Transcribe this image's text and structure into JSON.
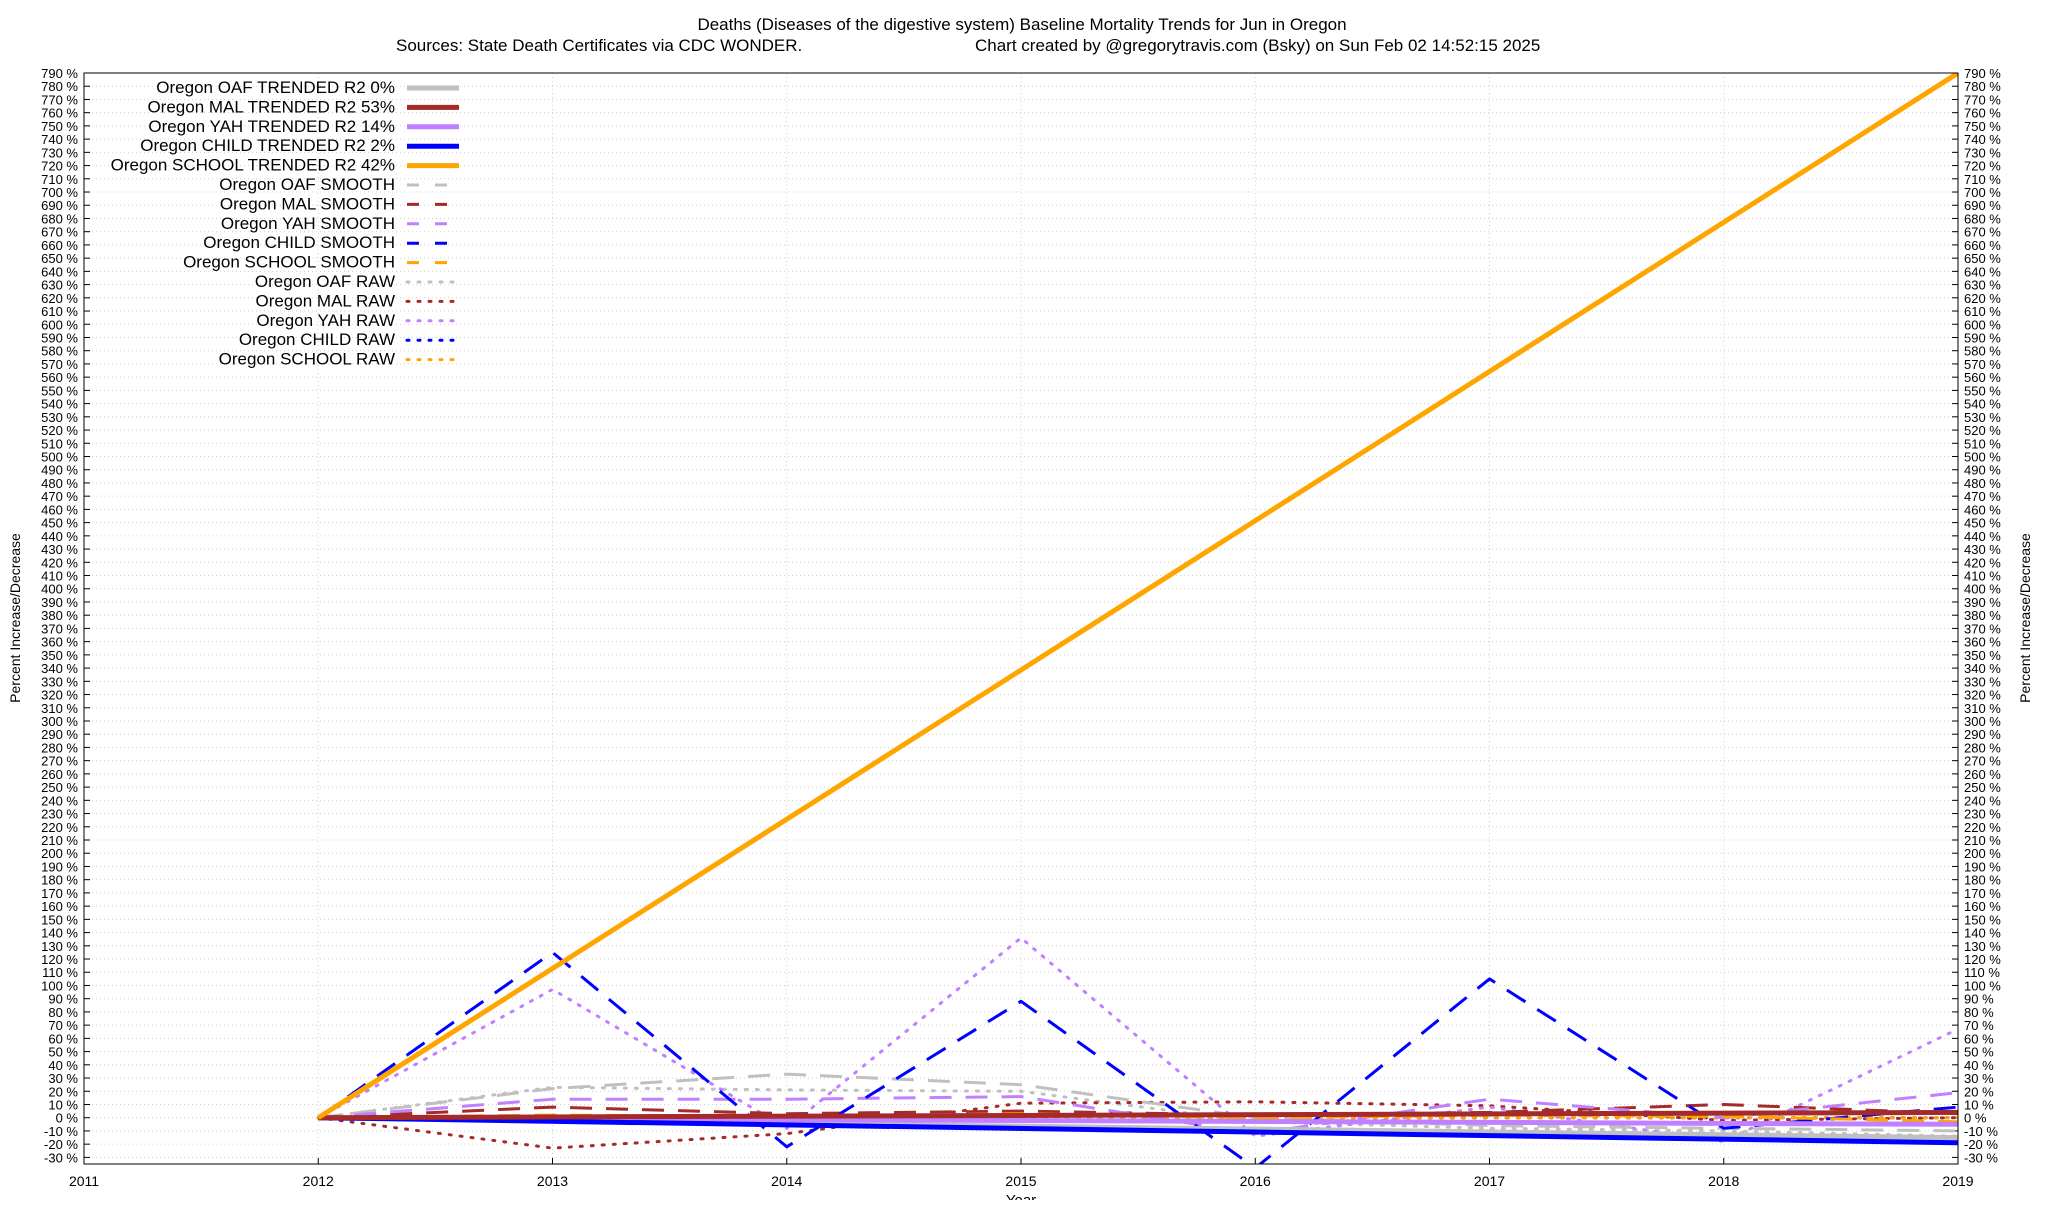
{
  "chart_data": {
    "type": "line",
    "title": "Deaths (Diseases of the digestive system)  Baseline Mortality Trends for Jun in Oregon",
    "subtitle_left": "Sources: State Death Certificates via CDC WONDER.",
    "subtitle_right": "Chart created by @gregorytravis.com (Bsky) on Sun Feb 02 14:52:15 2025",
    "xlabel": "Year",
    "ylabel": "Percent Increase/Decrease",
    "ylabel_right": "Percent Increase/Decrease",
    "xlim": [
      2011,
      2019
    ],
    "ylim": [
      -35,
      790
    ],
    "x_ticks": [
      "2011",
      "2012",
      "2013",
      "2014",
      "2015",
      "2016",
      "2017",
      "2018",
      "2019"
    ],
    "y_tick_step": 10,
    "y_tick_min": -30,
    "y_tick_max": 790,
    "y_tick_suffix": " %",
    "grid": true,
    "legend_position": "top-left",
    "series": [
      {
        "name": "Oregon OAF TRENDED R2  0%",
        "style": "solid",
        "color": "#c0c0c0",
        "width": 5,
        "x": [
          2012,
          2019
        ],
        "y": [
          0,
          -15
        ]
      },
      {
        "name": "Oregon MAL TRENDED R2  53%",
        "style": "solid",
        "color": "#a52a2a",
        "width": 5,
        "x": [
          2012,
          2019
        ],
        "y": [
          0,
          4
        ]
      },
      {
        "name": "Oregon YAH TRENDED R2  14%",
        "style": "solid",
        "color": "#c080ff",
        "width": 5,
        "x": [
          2012,
          2019
        ],
        "y": [
          0,
          -5
        ]
      },
      {
        "name": "Oregon CHILD TRENDED R2  2%",
        "style": "solid",
        "color": "#0000ff",
        "width": 5,
        "x": [
          2012,
          2019
        ],
        "y": [
          0,
          -19
        ]
      },
      {
        "name": "Oregon SCHOOL TRENDED R2  42%",
        "style": "solid",
        "color": "#ffa500",
        "width": 5,
        "x": [
          2012,
          2019
        ],
        "y": [
          0,
          790
        ]
      },
      {
        "name": "Oregon OAF SMOOTH",
        "style": "dash",
        "color": "#c0c0c0",
        "width": 3,
        "x": [
          2012,
          2013,
          2014,
          2015,
          2016,
          2017,
          2018,
          2019
        ],
        "y": [
          0,
          22,
          33,
          25,
          0,
          -6,
          -8,
          -10
        ]
      },
      {
        "name": "Oregon MAL SMOOTH",
        "style": "dash",
        "color": "#a52a2a",
        "width": 3,
        "x": [
          2012,
          2013,
          2014,
          2015,
          2016,
          2017,
          2018,
          2019
        ],
        "y": [
          0,
          8,
          3,
          5,
          2,
          4,
          10,
          3
        ]
      },
      {
        "name": "Oregon YAH SMOOTH",
        "style": "dash",
        "color": "#c080ff",
        "width": 3,
        "x": [
          2012,
          2013,
          2014,
          2015,
          2016,
          2017,
          2018,
          2019
        ],
        "y": [
          0,
          14,
          14,
          16,
          -12,
          14,
          0,
          19
        ]
      },
      {
        "name": "Oregon CHILD SMOOTH",
        "style": "dash",
        "color": "#0000ff",
        "width": 3,
        "x": [
          2012,
          2013,
          2014,
          2015,
          2016,
          2017,
          2018,
          2019
        ],
        "y": [
          0,
          125,
          -22,
          88,
          -38,
          105,
          -8,
          8
        ]
      },
      {
        "name": "Oregon SCHOOL SMOOTH",
        "style": "dash",
        "color": "#ffa500",
        "width": 3,
        "x": [
          2012,
          2013,
          2014,
          2015,
          2016,
          2017,
          2018,
          2019
        ],
        "y": [
          0,
          2,
          1,
          3,
          0,
          2,
          1,
          -3
        ]
      },
      {
        "name": "Oregon OAF RAW",
        "style": "dot",
        "color": "#c0c0c0",
        "width": 3,
        "x": [
          2012,
          2013,
          2014,
          2015,
          2016,
          2017,
          2018,
          2019
        ],
        "y": [
          0,
          23,
          21,
          20,
          -3,
          -8,
          -10,
          -14
        ]
      },
      {
        "name": "Oregon MAL RAW",
        "style": "dot",
        "color": "#a52a2a",
        "width": 3,
        "x": [
          2012,
          2013,
          2014,
          2015,
          2016,
          2017,
          2018,
          2019
        ],
        "y": [
          0,
          -23,
          -12,
          11,
          12,
          9,
          -2,
          0
        ]
      },
      {
        "name": "Oregon YAH RAW",
        "style": "dot",
        "color": "#c080ff",
        "width": 3,
        "x": [
          2012,
          2013,
          2014,
          2015,
          2016,
          2017,
          2018,
          2019
        ],
        "y": [
          0,
          97,
          -8,
          136,
          -14,
          8,
          -18,
          67
        ]
      },
      {
        "name": "Oregon CHILD RAW",
        "style": "dot",
        "color": "#0000ff",
        "width": 3,
        "x": [
          2012,
          2013,
          2014,
          2015,
          2016,
          2017,
          2018,
          2019
        ],
        "y": [
          0,
          0,
          0,
          0,
          0,
          0,
          0,
          0
        ]
      },
      {
        "name": "Oregon SCHOOL RAW",
        "style": "dot",
        "color": "#ffa500",
        "width": 3,
        "x": [
          2012,
          2013,
          2014,
          2015,
          2016,
          2017,
          2018,
          2019
        ],
        "y": [
          0,
          0,
          0,
          0,
          0,
          0,
          0,
          0
        ]
      }
    ]
  }
}
